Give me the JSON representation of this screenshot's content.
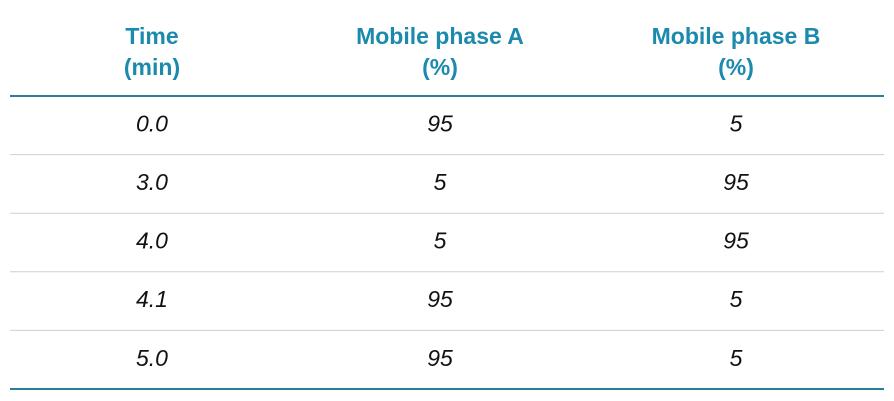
{
  "table": {
    "header": [
      [
        "Time",
        "(min)"
      ],
      [
        "Mobile phase A",
        "(%)"
      ],
      [
        "Mobile phase B",
        "(%)"
      ]
    ],
    "rows": [
      [
        "0.0",
        "95",
        "5"
      ],
      [
        "3.0",
        "5",
        "95"
      ],
      [
        "4.0",
        "5",
        "95"
      ],
      [
        "4.1",
        "95",
        "5"
      ],
      [
        "5.0",
        "95",
        "5"
      ]
    ]
  }
}
